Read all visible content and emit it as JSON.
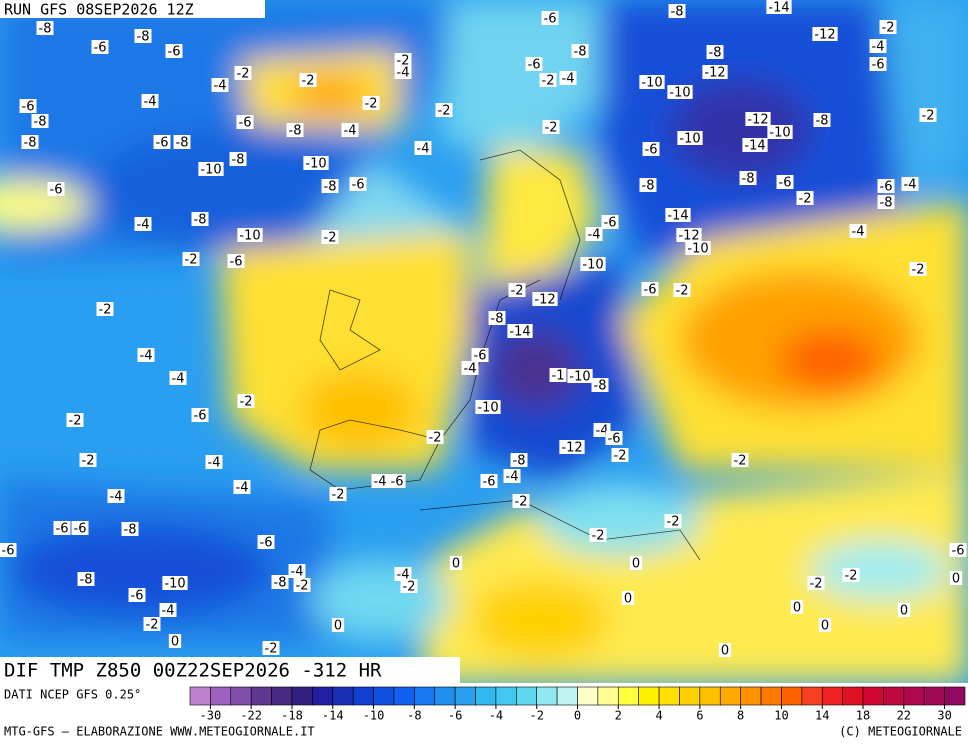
{
  "header": {
    "run": "RUN GFS 08SEP2026 12Z"
  },
  "map": {
    "title": "DIF TMP Z850 00Z22SEP2026 -312 HR",
    "contour_labels": [
      -8,
      -6,
      -8,
      -6,
      -6,
      -8,
      -4,
      -4,
      -2,
      -2,
      -8,
      -6,
      -8,
      -10,
      -6,
      -8,
      -8,
      -4,
      -10,
      -8,
      -6,
      -2,
      -2,
      -4,
      -2,
      -4,
      -6,
      -8,
      -6,
      -2,
      -4,
      -2,
      -8,
      -14,
      -12,
      -8,
      -12,
      -10,
      -10,
      -2,
      -4,
      -6,
      -12,
      -10,
      -8,
      -14,
      -10,
      -6,
      -2,
      -8,
      -8,
      -6,
      -2,
      -6,
      -4,
      -8,
      -14,
      -12,
      -10,
      -6,
      -4,
      -10,
      -4,
      -2,
      -6,
      -2,
      -6,
      -4,
      -8,
      -10,
      -2,
      -2,
      -6,
      -2,
      -2,
      -12,
      -8,
      -14,
      -6,
      -4,
      -1,
      -10,
      -8,
      -4,
      -4,
      -6,
      -2,
      -2,
      -10,
      -2,
      -4,
      -6,
      -12,
      -2,
      -2,
      -4,
      -8,
      -2,
      -4,
      -4,
      -2,
      -4,
      -6,
      -6,
      -4,
      -2,
      -6,
      -6,
      -8,
      -2,
      -2,
      -6,
      -6,
      -4,
      -8,
      -2,
      -4,
      -2,
      0,
      0,
      -6,
      0,
      -8,
      -10,
      -6,
      -4,
      -2,
      0,
      0,
      0,
      -2,
      -2,
      0,
      0,
      0,
      -2,
      0
    ]
  },
  "colorbar": {
    "colors": [
      "#c080d0",
      "#a060c0",
      "#8050a8",
      "#603890",
      "#482880",
      "#302080",
      "#2020a0",
      "#1830b8",
      "#1040d0",
      "#1050e0",
      "#1060f0",
      "#1878f0",
      "#2090f0",
      "#28a0f0",
      "#30b8f0",
      "#40c8f0",
      "#60d8f0",
      "#90e8f0",
      "#c0f4f4",
      "#ffffc8",
      "#ffff90",
      "#ffff40",
      "#fff000",
      "#ffe000",
      "#ffd000",
      "#ffc000",
      "#ffa800",
      "#ff9000",
      "#ff7800",
      "#ff6000",
      "#f84020",
      "#f02020",
      "#e01020",
      "#d00830",
      "#c00840",
      "#b00850",
      "#a00858",
      "#900860"
    ],
    "ticks": [
      -30,
      -22,
      -18,
      -14,
      -10,
      -8,
      -6,
      -4,
      -2,
      0,
      2,
      4,
      6,
      8,
      10,
      14,
      18,
      22,
      30
    ]
  },
  "footer": {
    "source": "DATI NCEP GFS 0.25°",
    "credit": "MTG-GFS – ELABORAZIONE WWW.METEOGIORNALE.IT",
    "copyright": "(C) METEOGIORNALE"
  }
}
